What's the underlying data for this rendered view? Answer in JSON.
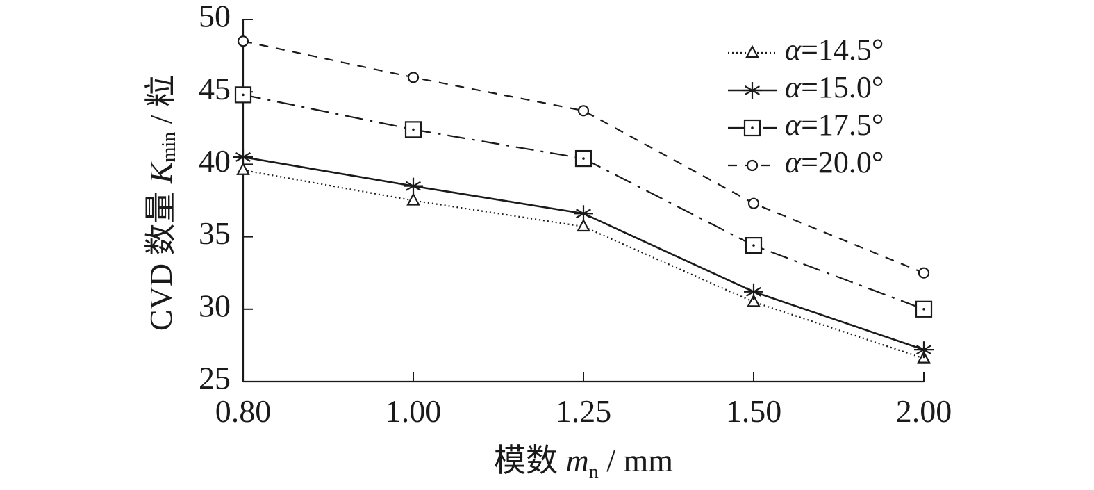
{
  "chart_data": {
    "type": "line",
    "categories": [
      "0.80",
      "1.00",
      "1.25",
      "1.50",
      "2.00"
    ],
    "ylim": [
      25,
      50
    ],
    "yticks": [
      25,
      30,
      35,
      40,
      45,
      50
    ],
    "grid": false,
    "legend_position": "top-right",
    "xlabel": {
      "prefix": "模数 ",
      "symbol": "m",
      "subscript": "n",
      "unit": " / mm"
    },
    "ylabel": {
      "prefix": "CVD 数量 ",
      "symbol": "K",
      "subscript": "min",
      "unit": " / 粒"
    },
    "series": [
      {
        "name": "α=14.5°",
        "legend_symbol": "α",
        "legend_value": "=14.5°",
        "marker": "triangle",
        "dash": "dotted",
        "values": [
          39.6,
          37.5,
          35.7,
          30.5,
          26.6
        ]
      },
      {
        "name": "α=15.0°",
        "legend_symbol": "α",
        "legend_value": "=15.0°",
        "marker": "asterisk",
        "dash": "solid",
        "values": [
          40.5,
          38.5,
          36.6,
          31.2,
          27.2
        ]
      },
      {
        "name": "α=17.5°",
        "legend_symbol": "α",
        "legend_value": "=17.5°",
        "marker": "square",
        "dash": "dashdot",
        "values": [
          44.8,
          42.4,
          40.4,
          34.4,
          30.0
        ]
      },
      {
        "name": "α=20.0°",
        "legend_symbol": "α",
        "legend_value": "=20.0°",
        "marker": "circle",
        "dash": "dashed",
        "values": [
          48.5,
          46.0,
          43.7,
          37.3,
          32.5
        ]
      }
    ]
  }
}
